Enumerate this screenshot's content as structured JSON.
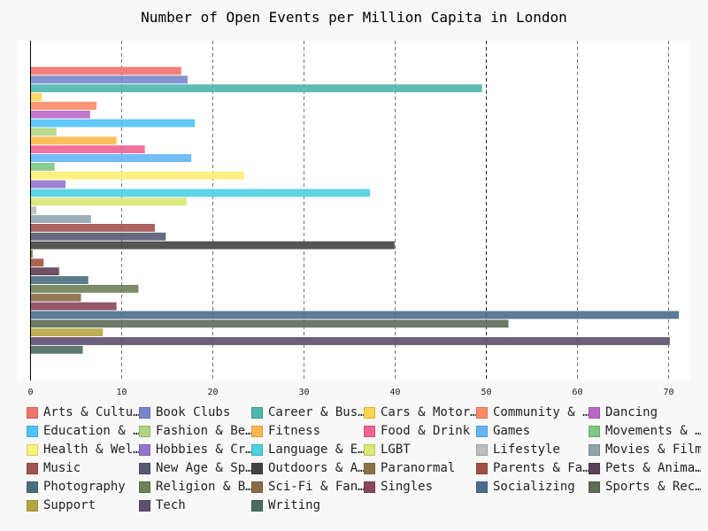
{
  "chart_data": {
    "type": "bar",
    "orientation": "horizontal",
    "title": "Number of Open Events per Million Capita in London",
    "xlabel": "",
    "ylabel": "",
    "xlim": [
      0,
      72
    ],
    "xticks": [
      0,
      10,
      20,
      30,
      40,
      50,
      60,
      70
    ],
    "grid": "vertical dashed",
    "legend_position": "bottom",
    "series": [
      {
        "name": "Arts & Culture",
        "label": "Arts & Cultu…",
        "value": 16.5,
        "color": "#f2736b"
      },
      {
        "name": "Book Clubs",
        "label": "Book Clubs",
        "value": 17.2,
        "color": "#7986cb"
      },
      {
        "name": "Career & Business",
        "label": "Career & Bus…",
        "value": 49.5,
        "color": "#4db6ac"
      },
      {
        "name": "Cars & Motorcycles",
        "label": "Cars & Motor…",
        "value": 1.2,
        "color": "#ffd54f"
      },
      {
        "name": "Community & Environment",
        "label": "Community & …",
        "value": 7.2,
        "color": "#ff8a65"
      },
      {
        "name": "Dancing",
        "label": "Dancing",
        "value": 6.5,
        "color": "#ba68c8"
      },
      {
        "name": "Education & Learning",
        "label": "Education & …",
        "value": 18.0,
        "color": "#4fc3f7"
      },
      {
        "name": "Fashion & Beauty",
        "label": "Fashion & Be…",
        "value": 2.8,
        "color": "#aed581"
      },
      {
        "name": "Fitness",
        "label": "Fitness",
        "value": 9.4,
        "color": "#ffb74d"
      },
      {
        "name": "Food & Drink",
        "label": "Food & Drink",
        "value": 12.5,
        "color": "#f06292"
      },
      {
        "name": "Games",
        "label": "Games",
        "value": 17.6,
        "color": "#64b5f6"
      },
      {
        "name": "Movements & Politics",
        "label": "Movements & …",
        "value": 2.6,
        "color": "#81c784"
      },
      {
        "name": "Health & Wellbeing",
        "label": "Health & Wel…",
        "value": 23.4,
        "color": "#fff176"
      },
      {
        "name": "Hobbies & Crafts",
        "label": "Hobbies & Cr…",
        "value": 3.8,
        "color": "#9575cd"
      },
      {
        "name": "Language & Ethnic Identity",
        "label": "Language & E…",
        "value": 37.2,
        "color": "#4dd0e1"
      },
      {
        "name": "LGBT",
        "label": "LGBT",
        "value": 17.1,
        "color": "#dce775"
      },
      {
        "name": "Lifestyle",
        "label": "Lifestyle",
        "value": 0.6,
        "color": "#bdbdbd"
      },
      {
        "name": "Movies & Film",
        "label": "Movies & Film",
        "value": 6.6,
        "color": "#90a4ae"
      },
      {
        "name": "Music",
        "label": "Music",
        "value": 13.6,
        "color": "#a1544c"
      },
      {
        "name": "New Age & Spirituality",
        "label": "New Age & Sp…",
        "value": 14.8,
        "color": "#575a75"
      },
      {
        "name": "Outdoors & Adventure",
        "label": "Outdoors & A…",
        "value": 39.9,
        "color": "#424242"
      },
      {
        "name": "Paranormal",
        "label": "Paranormal",
        "value": 0.2,
        "color": "#8b7348"
      },
      {
        "name": "Parents & Family",
        "label": "Parents & Fa…",
        "value": 1.4,
        "color": "#a0523f"
      },
      {
        "name": "Pets & Animals",
        "label": "Pets & Anima…",
        "value": 3.1,
        "color": "#5e3f58"
      },
      {
        "name": "Photography",
        "label": "Photography",
        "value": 6.3,
        "color": "#4a6e80"
      },
      {
        "name": "Religion & Beliefs",
        "label": "Religion & B…",
        "value": 11.8,
        "color": "#6e8058"
      },
      {
        "name": "Sci-Fi & Fantasy",
        "label": "Sci-Fi & Fan…",
        "value": 5.5,
        "color": "#8b6a46"
      },
      {
        "name": "Singles",
        "label": "Singles",
        "value": 9.4,
        "color": "#8a455c"
      },
      {
        "name": "Socializing",
        "label": "Socializing",
        "value": 71.1,
        "color": "#4a6d8e"
      },
      {
        "name": "Sports & Recreation",
        "label": "Sports & Rec…",
        "value": 52.4,
        "color": "#5c6e55"
      },
      {
        "name": "Support",
        "label": "Support",
        "value": 7.9,
        "color": "#b5a642"
      },
      {
        "name": "Tech",
        "label": "Tech",
        "value": 70.1,
        "color": "#5e4f6e"
      },
      {
        "name": "Writing",
        "label": "Writing",
        "value": 5.7,
        "color": "#4c6a66"
      }
    ]
  }
}
